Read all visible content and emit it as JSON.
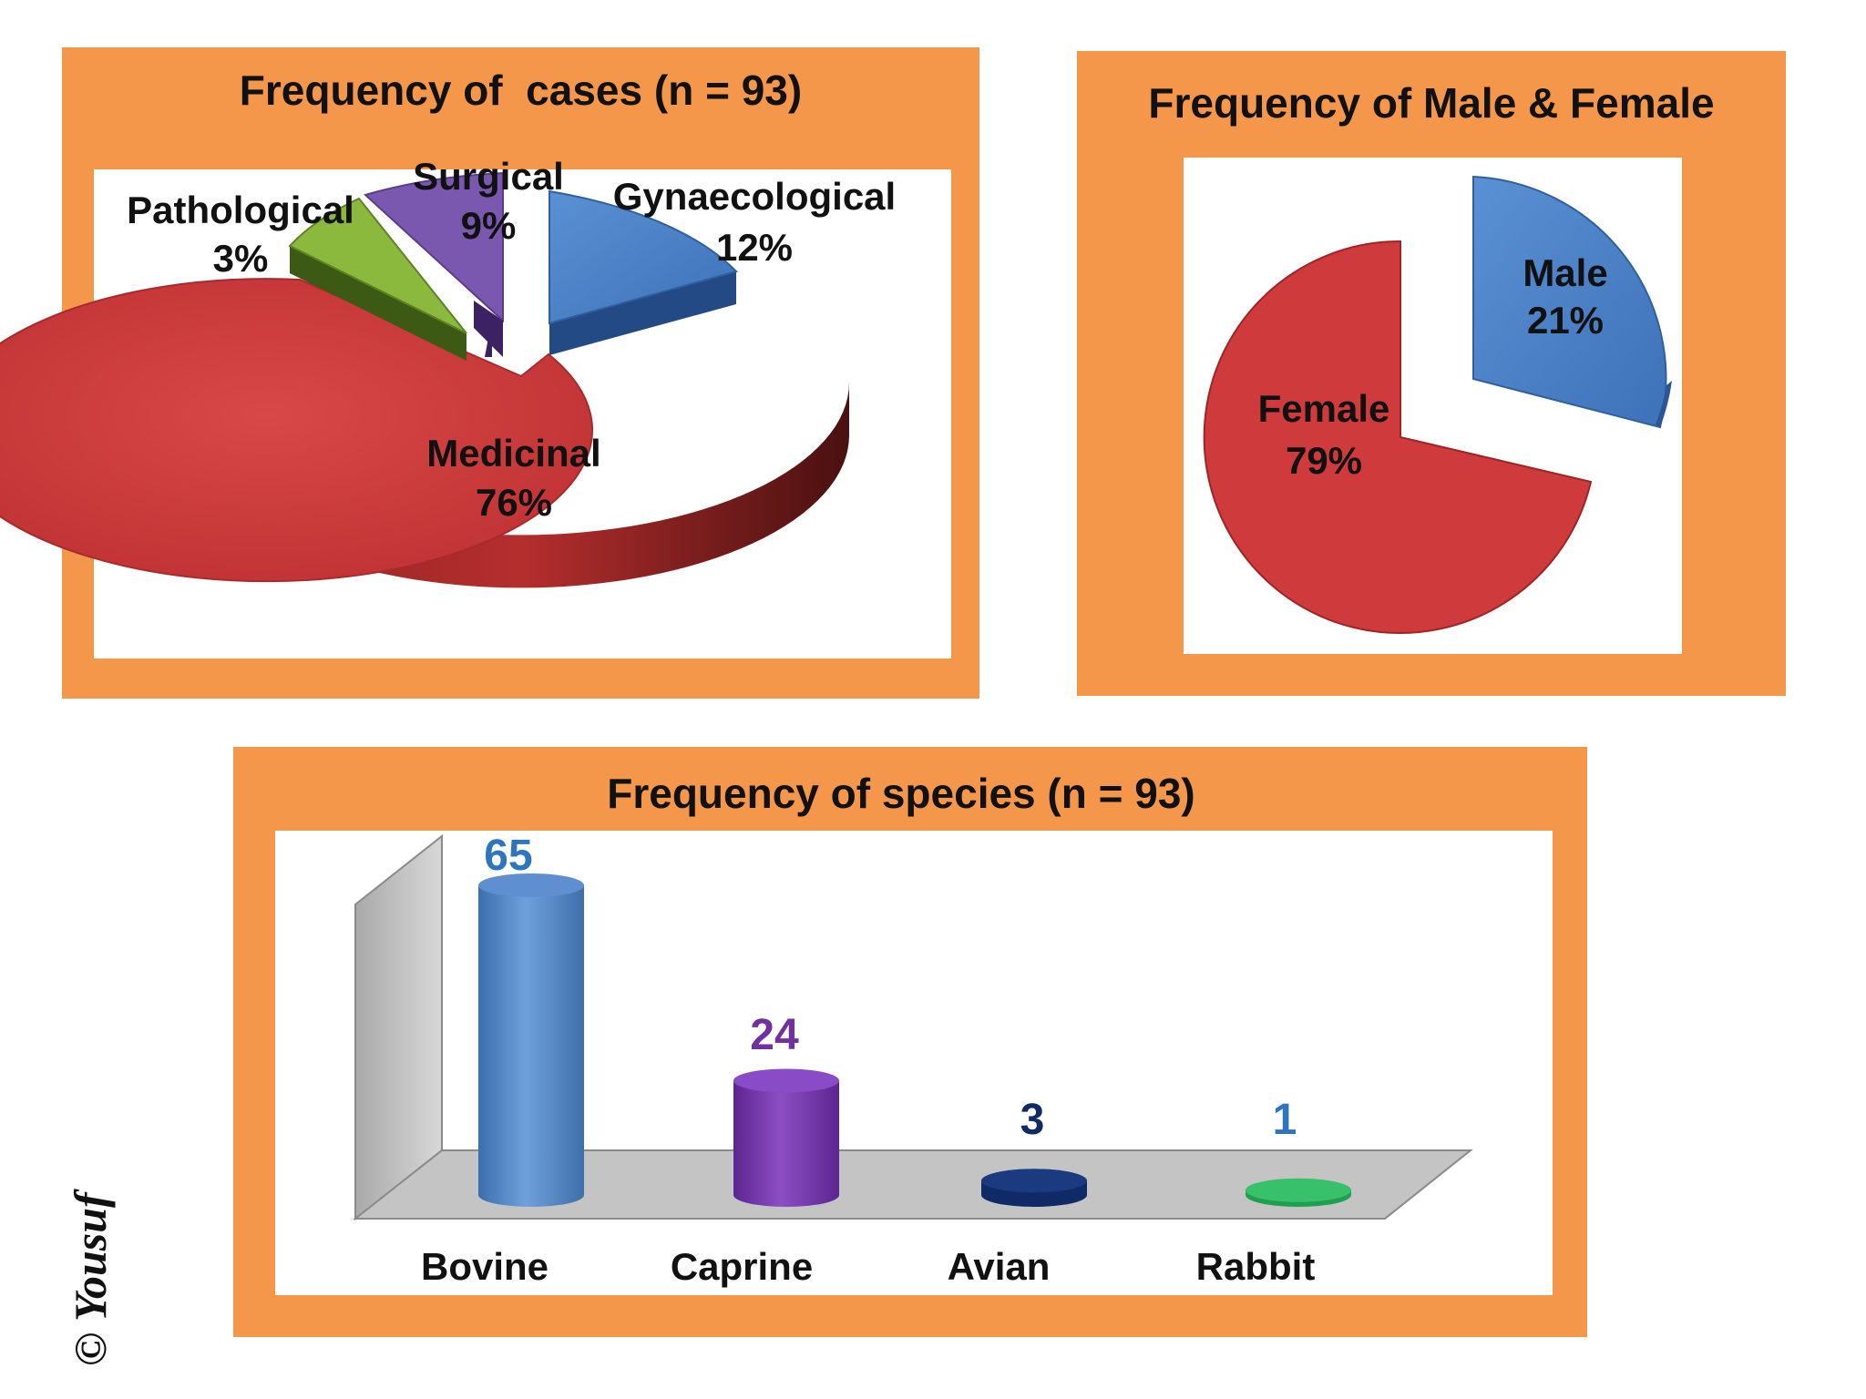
{
  "credit": "© Yousuf",
  "colors": {
    "panel_orange": "#f4974a",
    "medicinal_red": "#c8383a",
    "gynaecological_blue": "#4b80c8",
    "surgical_purple": "#7a58b0",
    "pathological_green": "#7fa83a",
    "bovine_blue": "#4f86c6",
    "caprine_purple": "#7030a0",
    "avian_navy": "#0f2a66",
    "rabbit_green": "#1fa050"
  },
  "chart_data": [
    {
      "type": "pie",
      "title": "Frequency of  cases (n = 93)",
      "categories": [
        "Medicinal",
        "Gynaecological",
        "Surgical",
        "Pathological"
      ],
      "values": [
        76,
        12,
        9,
        3
      ],
      "labels": [
        "Medicinal\n76%",
        "Gynaecological\n12%",
        "Surgical\n9%",
        "Pathological\n3%"
      ],
      "value_labels": [
        "76%",
        "12%",
        "9%",
        "3%"
      ],
      "style": "3d-exploded"
    },
    {
      "type": "pie",
      "title": "Frequency of Male & Female",
      "categories": [
        "Female",
        "Male"
      ],
      "values": [
        79,
        21
      ],
      "value_labels": [
        "79%",
        "21%"
      ],
      "style": "exploded"
    },
    {
      "type": "bar",
      "title": "Frequency of species (n = 93)",
      "categories": [
        "Bovine",
        "Caprine",
        "Avian",
        "Rabbit"
      ],
      "values": [
        65,
        24,
        3,
        1
      ],
      "value_labels": [
        "65",
        "24",
        "3",
        "1"
      ],
      "style": "3d-cylinder",
      "ylim": [
        0,
        70
      ]
    }
  ]
}
